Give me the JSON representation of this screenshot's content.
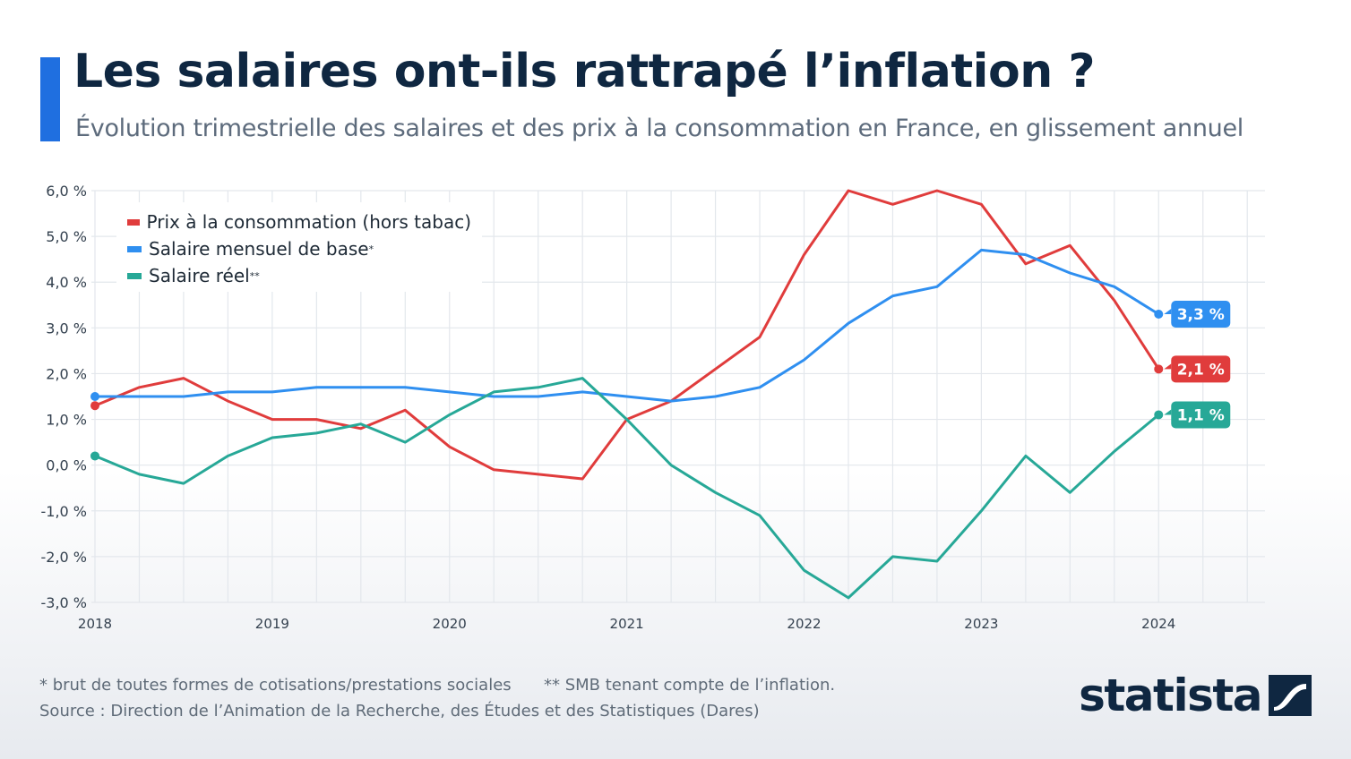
{
  "header": {
    "title": "Les salaires ont-ils rattrapé l’inflation ?",
    "subtitle": "Évolution trimestrielle des salaires et des prix à la consommation en France, en glissement annuel"
  },
  "footer": {
    "note_1": "* brut de toutes formes de cotisations/prestations sociales",
    "note_2": "** SMB tenant compte de l’inflation.",
    "source": "Source : Direction de l’Animation de la Recherche, des Études et des Statistiques (Dares)",
    "logo": "statista"
  },
  "chart_data": {
    "type": "line",
    "title": "Les salaires ont-ils rattrapé l’inflation ?",
    "subtitle": "Évolution trimestrielle des salaires et des prix à la consommation en France, en glissement annuel",
    "x": [
      2018.0,
      2018.25,
      2018.5,
      2018.75,
      2019.0,
      2019.25,
      2019.5,
      2019.75,
      2020.0,
      2020.25,
      2020.5,
      2020.75,
      2021.0,
      2021.25,
      2021.5,
      2021.75,
      2022.0,
      2022.25,
      2022.5,
      2022.75,
      2023.0,
      2023.25,
      2023.5,
      2023.75,
      2024.0
    ],
    "xticks": [
      "2018",
      "2019",
      "2020",
      "2021",
      "2022",
      "2023",
      "2024"
    ],
    "xlim": [
      2018,
      2024.6
    ],
    "ylim": [
      -3,
      6
    ],
    "yticks": [
      "6,0 %",
      "5,0 %",
      "4,0 %",
      "3,0 %",
      "2,0 %",
      "1,0 %",
      "0,0 %",
      "-1,0 %",
      "-2,0 %",
      "-3,0 %"
    ],
    "grid": true,
    "legend_position": "top-left",
    "series": [
      {
        "name": "Prix à la consommation (hors tabac)",
        "color": "#e03c3c",
        "values": [
          1.3,
          1.7,
          1.9,
          1.4,
          1.0,
          1.0,
          0.8,
          1.2,
          0.4,
          -0.1,
          -0.2,
          -0.3,
          1.0,
          1.4,
          2.1,
          2.8,
          4.6,
          6.0,
          5.7,
          6.0,
          5.7,
          4.4,
          4.8,
          3.6,
          2.1
        ],
        "end_label": "2,1 %"
      },
      {
        "name": "Salaire mensuel de base",
        "marker": "*",
        "color": "#2f8ff0",
        "values": [
          1.5,
          1.5,
          1.5,
          1.6,
          1.6,
          1.7,
          1.7,
          1.7,
          1.6,
          1.5,
          1.5,
          1.6,
          1.5,
          1.4,
          1.5,
          1.7,
          2.3,
          3.1,
          3.7,
          3.9,
          4.7,
          4.6,
          4.2,
          3.9,
          3.3
        ],
        "end_label": "3,3 %"
      },
      {
        "name": "Salaire réel",
        "marker": "**",
        "color": "#27a897",
        "values": [
          0.2,
          -0.2,
          -0.4,
          0.2,
          0.6,
          0.7,
          0.9,
          0.5,
          1.1,
          1.6,
          1.7,
          1.9,
          1.0,
          0.0,
          -0.6,
          -1.1,
          -2.3,
          -2.9,
          -2.0,
          -2.1,
          -1.0,
          0.2,
          -0.6,
          0.3,
          1.1
        ],
        "end_label": "1,1 %"
      }
    ]
  }
}
